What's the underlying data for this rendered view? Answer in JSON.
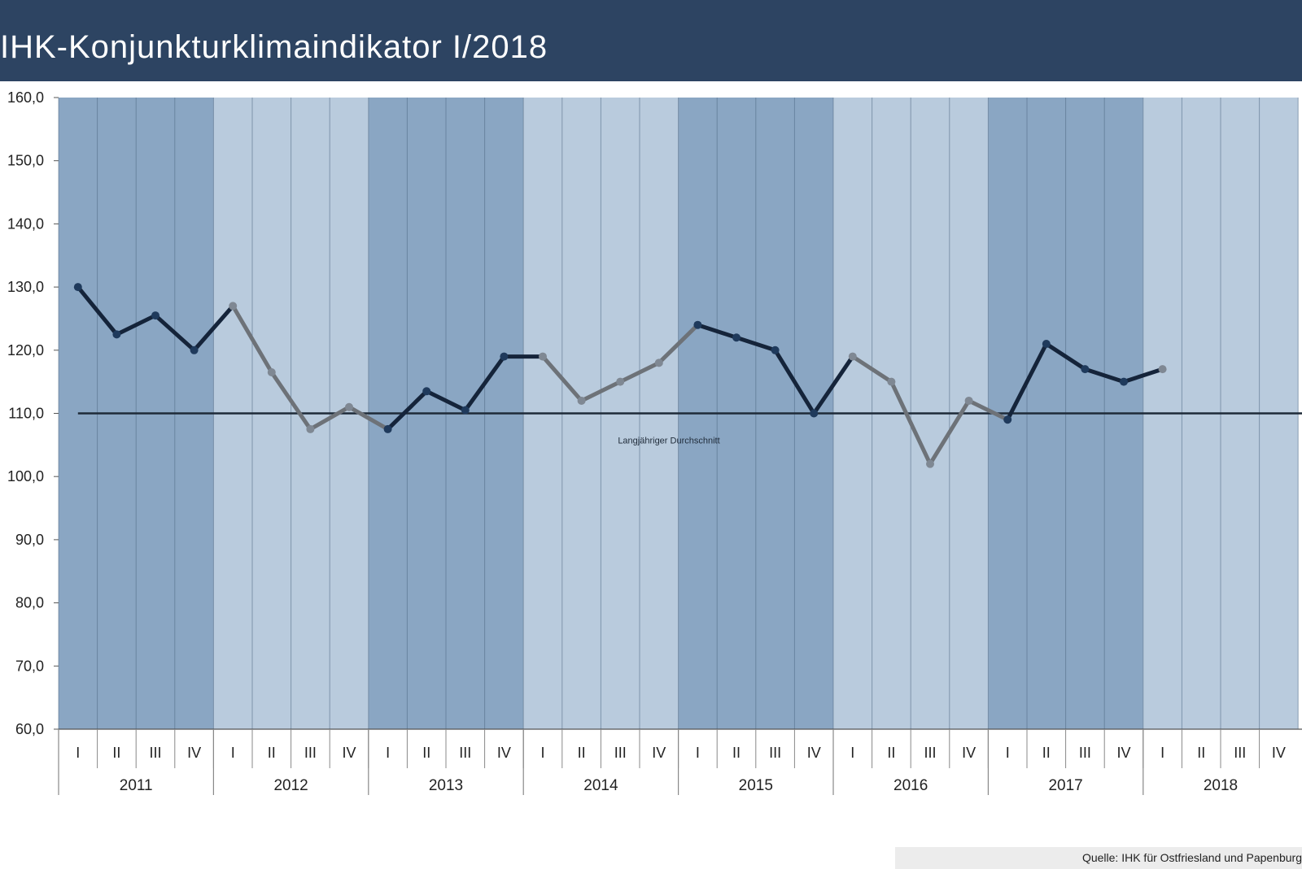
{
  "header": {
    "title": "IHK-Konjunkturklimaindikator I/2018"
  },
  "chart_data": {
    "type": "line",
    "title": "IHK-Konjunkturklimaindikator I/2018",
    "xlabel": "",
    "ylabel": "",
    "ylim": [
      60,
      160
    ],
    "y_ticks": [
      "60,0",
      "70,0",
      "80,0",
      "90,0",
      "100,0",
      "110,0",
      "120,0",
      "130,0",
      "140,0",
      "150,0",
      "160,0"
    ],
    "years": [
      "2011",
      "2012",
      "2013",
      "2014",
      "2015",
      "2016",
      "2017",
      "2018"
    ],
    "quarters": [
      "I",
      "II",
      "III",
      "IV"
    ],
    "series": [
      {
        "values": [
          130.0,
          122.5,
          125.5,
          120.0,
          127.0,
          116.5,
          107.5,
          111.0,
          107.5,
          113.5,
          110.5,
          119.0,
          119.0,
          112.0,
          115.0,
          118.0,
          124.0,
          122.0,
          120.0,
          110.0,
          119.0,
          115.0,
          102.0,
          112.0,
          109.0,
          121.0,
          117.0,
          115.0,
          117.0
        ]
      }
    ],
    "reference_line": {
      "value": 110.0,
      "label": "Langjähriger Durchschnitt"
    },
    "grid": true,
    "colors": {
      "band_dark": "#8aa6c3",
      "band_light": "#b9cbdd",
      "line_dark": "#15243a",
      "line_gray": "#6d7278",
      "reference": "#1e2a38"
    }
  },
  "footer": {
    "source": "Quelle: IHK für Ostfriesland und Papenburg"
  }
}
